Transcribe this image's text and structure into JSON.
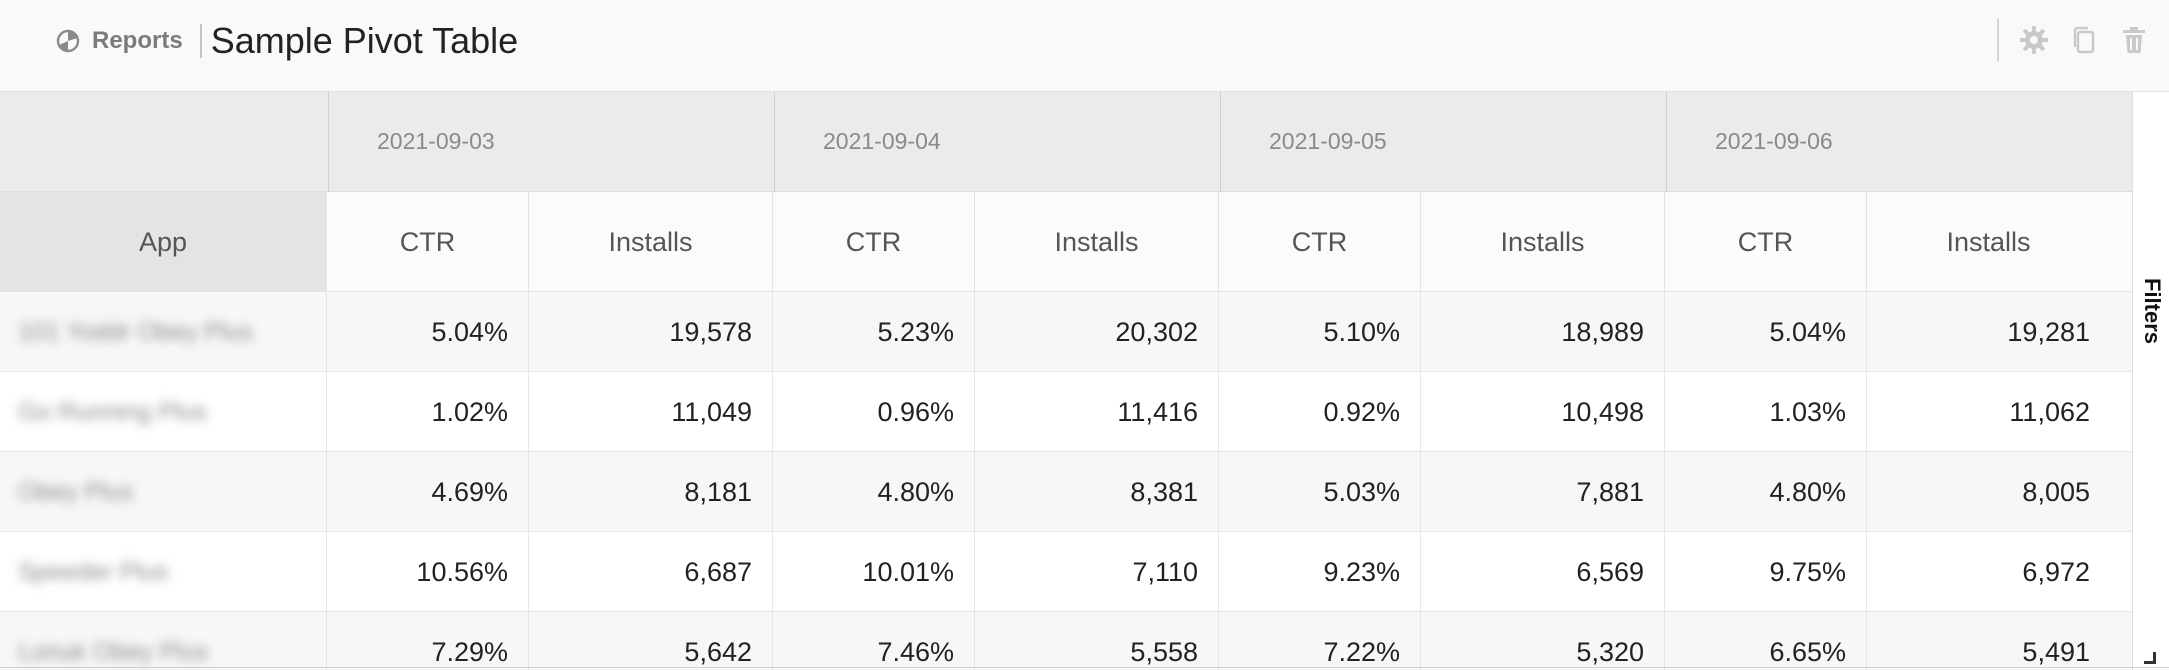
{
  "breadcrumb": {
    "section": "Reports",
    "title": "Sample Pivot Table"
  },
  "toolbar": {
    "icons": [
      "gear-icon",
      "copy-icon",
      "trash-icon"
    ]
  },
  "table": {
    "row_header": "App",
    "dates": [
      "2021-09-03",
      "2021-09-04",
      "2021-09-05",
      "2021-09-06"
    ],
    "metrics": [
      "CTR",
      "Installs"
    ],
    "rows": [
      {
        "app": "101 Yoddr Obey Plus",
        "values": [
          "5.04%",
          "19,578",
          "5.23%",
          "20,302",
          "5.10%",
          "18,989",
          "5.04%",
          "19,281"
        ]
      },
      {
        "app": "Go Running Plus",
        "values": [
          "1.02%",
          "11,049",
          "0.96%",
          "11,416",
          "0.92%",
          "10,498",
          "1.03%",
          "11,062"
        ]
      },
      {
        "app": "Obey Plus",
        "values": [
          "4.69%",
          "8,181",
          "4.80%",
          "8,381",
          "5.03%",
          "7,881",
          "4.80%",
          "8,005"
        ]
      },
      {
        "app": "Speeder Plus",
        "values": [
          "10.56%",
          "6,687",
          "10.01%",
          "7,110",
          "9.23%",
          "6,569",
          "9.75%",
          "6,972"
        ]
      },
      {
        "app": "Lonuk Obey Plus",
        "values": [
          "7.29%",
          "5,642",
          "7.46%",
          "5,558",
          "7.22%",
          "5,320",
          "6.65%",
          "5,491"
        ]
      }
    ]
  },
  "side_panel": {
    "label": "Filters"
  },
  "colors": {
    "header_bg": "#ebebeb",
    "app_header_bg": "#e4e4e4",
    "stripe": "#f7f7f7"
  }
}
